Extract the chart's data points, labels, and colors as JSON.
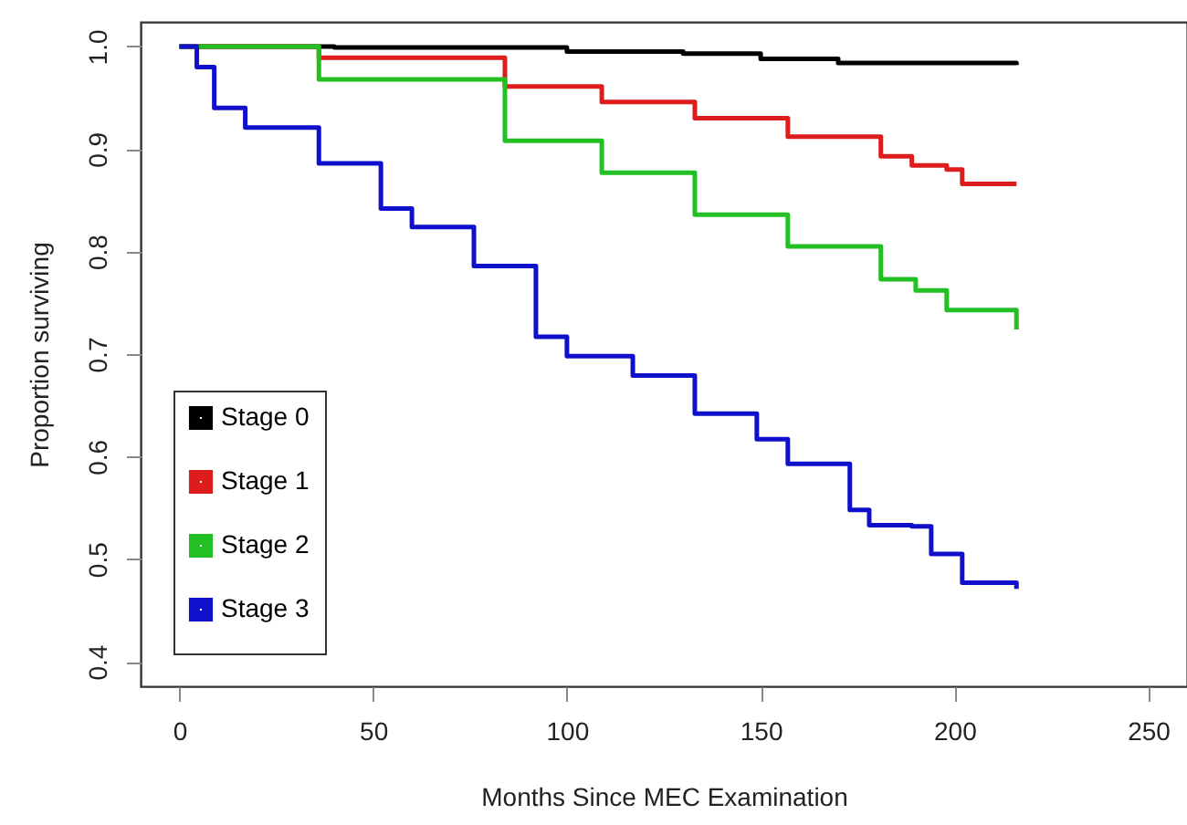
{
  "chart_data": {
    "type": "step",
    "xlabel": "Months Since MEC Examination",
    "ylabel": "Proportion surviving",
    "xlim": [
      -10,
      260
    ],
    "xticks": [
      0,
      50,
      100,
      150,
      200,
      250
    ],
    "ylim": [
      0.376,
      1.024
    ],
    "yticks": [
      0.4,
      0.5,
      0.6,
      0.7,
      0.8,
      0.9,
      {
        "value": 1,
        "label": "1.0"
      }
    ],
    "grid": false,
    "legend": "bottom left",
    "line_style": "solid",
    "marker": "none",
    "series": [
      {
        "name": "Stage 0",
        "color": "#000000",
        "x": [
          0,
          40,
          100,
          130,
          150,
          170,
          216
        ],
        "values": [
          1.0,
          0.999,
          0.995,
          0.993,
          0.988,
          0.984,
          0.982
        ]
      },
      {
        "name": "Stage 1",
        "color": "#dd1c1c",
        "x": [
          0,
          36,
          84,
          109,
          133,
          157,
          173,
          181,
          189,
          198,
          202,
          216
        ],
        "values": [
          1.0,
          0.989,
          0.961,
          0.946,
          0.93,
          0.912,
          0.912,
          0.893,
          0.884,
          0.88,
          0.866,
          0.866
        ]
      },
      {
        "name": "Stage 2",
        "color": "#22c022",
        "x": [
          0,
          36,
          84,
          109,
          133,
          157,
          181,
          190,
          198,
          216
        ],
        "values": [
          1.0,
          0.968,
          0.908,
          0.877,
          0.836,
          0.805,
          0.773,
          0.762,
          0.743,
          0.724
        ]
      },
      {
        "name": "Stage 3",
        "color": "#1010cc",
        "x": [
          0,
          4.5,
          9,
          17,
          36,
          52,
          60,
          76,
          92,
          100,
          117,
          133,
          149,
          157,
          173,
          178,
          189,
          194,
          202,
          216
        ],
        "values": [
          1.0,
          0.98,
          0.94,
          0.921,
          0.886,
          0.842,
          0.824,
          0.786,
          0.717,
          0.698,
          0.679,
          0.642,
          0.617,
          0.593,
          0.548,
          0.533,
          0.532,
          0.505,
          0.477,
          0.471
        ]
      }
    ]
  }
}
